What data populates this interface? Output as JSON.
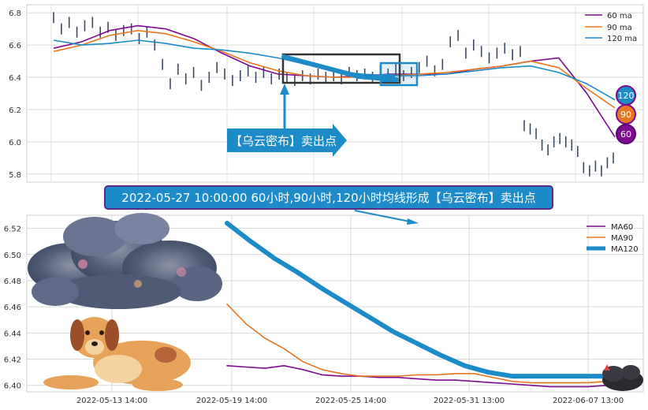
{
  "chart_data": [
    {
      "type": "line",
      "panel": "top",
      "ylim": [
        5.75,
        6.85
      ],
      "yticks": [
        "5.8",
        "6.0",
        "6.2",
        "6.4",
        "6.6",
        "6.8"
      ],
      "grid": true,
      "legend_position": "top-right",
      "series": [
        {
          "name": "60 ma",
          "color": "#7d0a8f",
          "values": [
            6.58,
            6.62,
            6.69,
            6.72,
            6.7,
            6.64,
            6.55,
            6.47,
            6.42,
            6.41,
            6.4,
            6.41,
            6.42,
            6.42,
            6.42,
            6.45,
            6.47,
            6.5,
            6.52,
            6.3,
            6.03
          ]
        },
        {
          "name": "90 ma",
          "color": "#e87722",
          "values": [
            6.56,
            6.6,
            6.66,
            6.69,
            6.67,
            6.62,
            6.56,
            6.49,
            6.44,
            6.41,
            6.4,
            6.4,
            6.41,
            6.42,
            6.43,
            6.45,
            6.47,
            6.5,
            6.46,
            6.33,
            6.21
          ]
        },
        {
          "name": "120 ma",
          "color": "#1e8bc9",
          "values": [
            6.63,
            6.6,
            6.61,
            6.63,
            6.61,
            6.58,
            6.57,
            6.55,
            6.52,
            6.48,
            6.44,
            6.42,
            6.41,
            6.41,
            6.42,
            6.44,
            6.46,
            6.47,
            6.43,
            6.36,
            6.26
          ]
        }
      ],
      "price_segments": [
        {
          "values": [
            6.77,
            6.7,
            6.74,
            6.68,
            6.72,
            6.74,
            6.68,
            6.71,
            6.66,
            6.69,
            6.7,
            6.64,
            6.68,
            6.6,
            6.48,
            6.36,
            6.45,
            6.39,
            6.43,
            6.35,
            6.4,
            6.46,
            6.42,
            6.38,
            6.41,
            6.44,
            6.4,
            6.43,
            6.39,
            6.42,
            6.4,
            6.38,
            6.41,
            6.39,
            6.42,
            6.4,
            6.41,
            6.39,
            6.43,
            6.41,
            6.42,
            6.4,
            6.44,
            6.42,
            6.45,
            6.41,
            6.43,
            6.46,
            6.5,
            6.44,
            6.48,
            6.62,
            6.66,
            6.55,
            6.6,
            6.56,
            6.52,
            6.55,
            6.58,
            6.54,
            6.56
          ]
        },
        {
          "values": [
            6.1,
            6.08,
            6.05,
            5.98,
            5.95,
            6.0,
            6.02,
            6.0,
            5.98,
            5.94,
            5.84,
            5.82,
            5.85,
            5.82,
            5.87,
            5.9
          ]
        }
      ],
      "badges": [
        "120",
        "90",
        "60"
      ],
      "annotation": "【乌云密布】卖出点"
    },
    {
      "type": "line",
      "panel": "bottom",
      "ylim": [
        6.395,
        6.53
      ],
      "yticks": [
        "6.40",
        "6.42",
        "6.44",
        "6.46",
        "6.48",
        "6.50",
        "6.52"
      ],
      "xticks": [
        "2022-05-13 14:00",
        "2022-05-19 14:00",
        "2022-05-25 14:00",
        "2022-05-31 13:00",
        "2022-06-07 13:00"
      ],
      "grid": true,
      "legend_position": "top-right",
      "series": [
        {
          "name": "MA60",
          "color": "#7d0a8f",
          "values": [
            6.415,
            6.414,
            6.413,
            6.415,
            6.412,
            6.408,
            6.407,
            6.407,
            6.406,
            6.406,
            6.405,
            6.404,
            6.404,
            6.403,
            6.402,
            6.401,
            6.4,
            6.399,
            6.399,
            6.399,
            6.4
          ]
        },
        {
          "name": "MA90",
          "color": "#e87722",
          "values": [
            6.462,
            6.447,
            6.436,
            6.428,
            6.418,
            6.412,
            6.409,
            6.407,
            6.407,
            6.407,
            6.408,
            6.408,
            6.409,
            6.409,
            6.406,
            6.403,
            6.402,
            6.402,
            6.402,
            6.402,
            6.403
          ]
        },
        {
          "name": "MA120",
          "color": "#1e8bc9",
          "values": [
            6.524,
            6.51,
            6.497,
            6.486,
            6.474,
            6.463,
            6.452,
            6.441,
            6.432,
            6.423,
            6.415,
            6.41,
            6.407,
            6.407,
            6.407,
            6.407,
            6.407
          ]
        }
      ]
    }
  ],
  "banner": {
    "text": "2022-05-27 10:00:00 60小时,90小时,120小时均线形成【乌云密布】卖出点"
  }
}
